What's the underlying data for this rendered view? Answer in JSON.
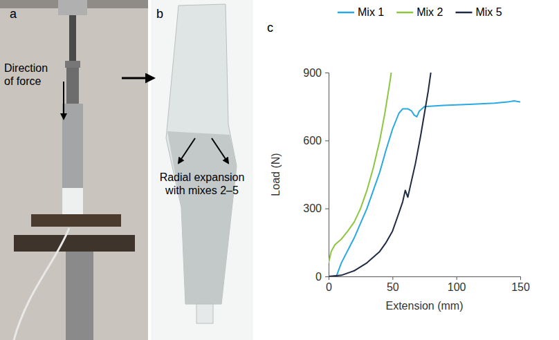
{
  "panels": {
    "a": {
      "label": "a",
      "annotation": "Direction of force"
    },
    "b": {
      "label": "b",
      "annotation": "Radial expansion with mixes 2–5"
    },
    "c": {
      "label": "c"
    }
  },
  "chart_data": {
    "type": "line",
    "x_label": "Extension (mm)",
    "y_label": "Load (N)",
    "xlim": [
      0,
      150
    ],
    "xticks": [
      0,
      50,
      100,
      150
    ],
    "ylim": [
      0,
      900
    ],
    "yticks": [
      0,
      300,
      600,
      900
    ],
    "grid": false,
    "legend": "top",
    "series": [
      {
        "name": "Mix 1",
        "color": "#29a9e1",
        "x": [
          6,
          10,
          20,
          30,
          40,
          45,
          50,
          55,
          58,
          62,
          65,
          67,
          69,
          71,
          75,
          90,
          110,
          130,
          140,
          145,
          150
        ],
        "values": [
          0,
          60,
          170,
          300,
          460,
          560,
          650,
          720,
          740,
          740,
          730,
          712,
          705,
          730,
          750,
          755,
          760,
          765,
          770,
          775,
          770
        ]
      },
      {
        "name": "Mix 2",
        "color": "#8cc63f",
        "x": [
          0,
          2,
          5,
          10,
          15,
          20,
          25,
          30,
          35,
          40,
          44,
          46,
          48,
          49
        ],
        "values": [
          60,
          110,
          140,
          165,
          200,
          240,
          300,
          380,
          480,
          600,
          720,
          790,
          860,
          900
        ]
      },
      {
        "name": "Mix 5",
        "color": "#1f2a44",
        "x": [
          0,
          10,
          20,
          30,
          40,
          45,
          50,
          55,
          58,
          60,
          62,
          64,
          68,
          72,
          75,
          78,
          80
        ],
        "values": [
          0,
          5,
          25,
          60,
          110,
          150,
          200,
          280,
          330,
          380,
          350,
          400,
          500,
          620,
          720,
          820,
          900
        ]
      }
    ]
  }
}
